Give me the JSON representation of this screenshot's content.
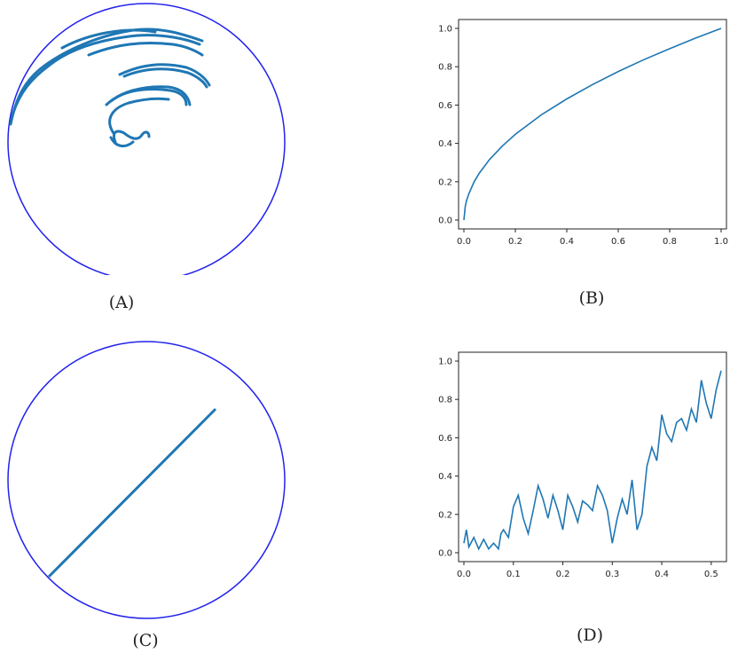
{
  "panels": [
    {
      "id": "A",
      "caption": "(A)"
    },
    {
      "id": "B",
      "caption": "(B)"
    },
    {
      "id": "C",
      "caption": "(C)"
    },
    {
      "id": "D",
      "caption": "(D)"
    }
  ],
  "colors": {
    "circle": "#2222ee",
    "curve": "#1f77b4"
  },
  "chart_data": [
    {
      "panel": "B",
      "type": "line",
      "xlim": [
        0.0,
        1.0
      ],
      "ylim": [
        0.0,
        1.0
      ],
      "xticks": [
        "0.0",
        "0.2",
        "0.4",
        "0.6",
        "0.8",
        "1.0"
      ],
      "yticks": [
        "0.0",
        "0.2",
        "0.4",
        "0.6",
        "0.8",
        "1.0"
      ],
      "x": [
        0,
        0.005,
        0.01,
        0.02,
        0.04,
        0.06,
        0.1,
        0.15,
        0.2,
        0.3,
        0.4,
        0.5,
        0.6,
        0.7,
        0.8,
        0.9,
        1.0
      ],
      "y": [
        0,
        0.07,
        0.1,
        0.14,
        0.2,
        0.245,
        0.316,
        0.387,
        0.447,
        0.548,
        0.632,
        0.707,
        0.775,
        0.837,
        0.894,
        0.949,
        1.0
      ]
    },
    {
      "panel": "D",
      "type": "line",
      "xlim": [
        0.0,
        0.52
      ],
      "ylim": [
        0.0,
        1.0
      ],
      "xticks": [
        "0.0",
        "0.1",
        "0.2",
        "0.3",
        "0.4",
        "0.5"
      ],
      "yticks": [
        "0.0",
        "0.2",
        "0.4",
        "0.6",
        "0.8",
        "1.0"
      ],
      "x": [
        0,
        0.005,
        0.01,
        0.02,
        0.03,
        0.04,
        0.05,
        0.06,
        0.07,
        0.075,
        0.08,
        0.09,
        0.1,
        0.11,
        0.12,
        0.13,
        0.14,
        0.15,
        0.16,
        0.17,
        0.18,
        0.19,
        0.2,
        0.21,
        0.22,
        0.23,
        0.24,
        0.25,
        0.26,
        0.27,
        0.28,
        0.29,
        0.3,
        0.31,
        0.32,
        0.33,
        0.34,
        0.35,
        0.36,
        0.37,
        0.38,
        0.39,
        0.4,
        0.41,
        0.42,
        0.43,
        0.44,
        0.45,
        0.46,
        0.47,
        0.48,
        0.49,
        0.5,
        0.51,
        0.52
      ],
      "y": [
        0.05,
        0.12,
        0.03,
        0.08,
        0.02,
        0.07,
        0.02,
        0.05,
        0.02,
        0.1,
        0.12,
        0.08,
        0.24,
        0.3,
        0.18,
        0.1,
        0.22,
        0.35,
        0.28,
        0.18,
        0.3,
        0.22,
        0.12,
        0.3,
        0.24,
        0.16,
        0.27,
        0.25,
        0.22,
        0.35,
        0.3,
        0.22,
        0.05,
        0.18,
        0.28,
        0.2,
        0.38,
        0.12,
        0.2,
        0.45,
        0.55,
        0.48,
        0.72,
        0.62,
        0.58,
        0.68,
        0.7,
        0.64,
        0.75,
        0.68,
        0.9,
        0.78,
        0.7,
        0.85,
        0.95
      ]
    }
  ]
}
